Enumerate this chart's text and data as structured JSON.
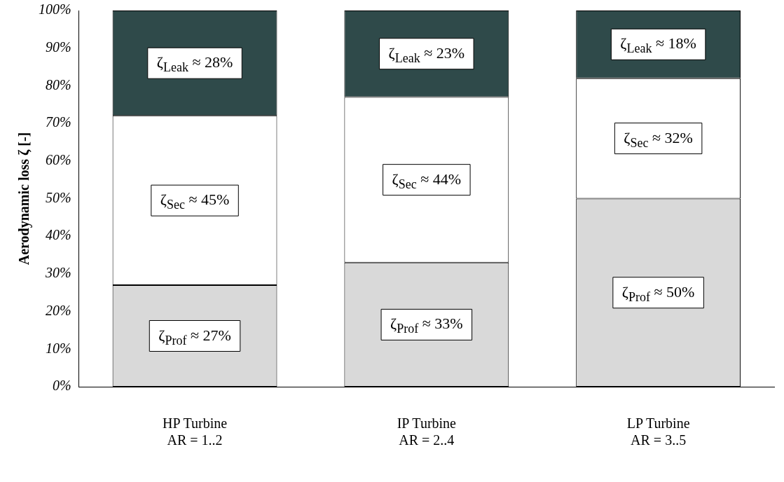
{
  "chart_data": {
    "type": "bar",
    "stacked": true,
    "ylabel": "Aerodynamic loss ζ [-]",
    "categories": [
      "HP Turbine\nAR = 1..2",
      "IP Turbine\nAR = 2..4",
      "LP Turbine\nAR = 3..5"
    ],
    "series": [
      {
        "color": "#d9d9d9",
        "values": [
          27,
          33,
          50
        ],
        "value_labels": [
          "ζ$_{Prof}$ ≈ 27%",
          "ζ$_{Prof}$ ≈ 33%",
          "ζ$_{Prof}$ ≈ 50%"
        ]
      },
      {
        "color": "#ffffff",
        "values": [
          45,
          44,
          32
        ],
        "value_labels": [
          "ζ$_{Sec}$ ≈ 45%",
          "ζ$_{Sec}$ ≈ 44%",
          "ζ$_{Sec}$ ≈ 32%"
        ]
      },
      {
        "color": "#2f4a4a",
        "values": [
          28,
          23,
          18
        ],
        "value_labels": [
          "ζ$_{Leak}$ ≈ 28%",
          "ζ$_{Leak}$ ≈ 23%",
          "ζ$_{Leak}$ ≈ 18%"
        ]
      }
    ],
    "ylim": [
      0,
      100
    ],
    "yticks": [
      {
        "value": 0,
        "label": "0%"
      },
      {
        "value": 10,
        "label": "10%"
      },
      {
        "value": 20,
        "label": "20%"
      },
      {
        "value": 30,
        "label": "30%"
      },
      {
        "value": 40,
        "label": "40%"
      },
      {
        "value": 50,
        "label": "50%"
      },
      {
        "value": 60,
        "label": "60%"
      },
      {
        "value": 70,
        "label": "70%"
      },
      {
        "value": 80,
        "label": "80%"
      },
      {
        "value": 90,
        "label": "90%"
      },
      {
        "value": 100,
        "label": "100%"
      }
    ],
    "grid": false,
    "legend": false
  }
}
